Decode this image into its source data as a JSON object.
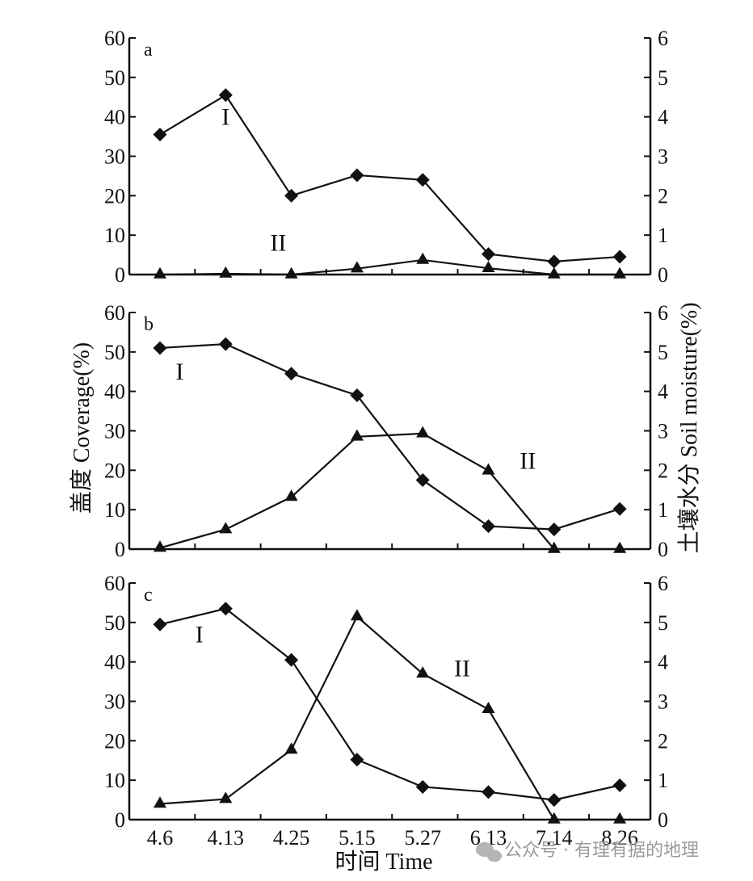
{
  "chart_data": {
    "type": "line",
    "x_categories": [
      "4.6",
      "4.13",
      "4.25",
      "5.15",
      "5.27",
      "6.13",
      "7.14",
      "8.26"
    ],
    "x_axis_title": "时间  Time",
    "y_left_title": "盖度  Coverage(%)",
    "y_right_title": "土壤水分  Soil moisture(%)",
    "y_left_ticks": [
      "0",
      "10",
      "20",
      "30",
      "40",
      "50",
      "60"
    ],
    "y_right_ticks": [
      "0",
      "1",
      "2",
      "3",
      "4",
      "5",
      "6"
    ],
    "y_left_range": [
      0,
      60
    ],
    "y_right_range": [
      0,
      6
    ],
    "panels": [
      {
        "label": "a",
        "series": [
          {
            "name": "I",
            "marker": "diamond",
            "values": [
              35.5,
              45.5,
              20,
              25.2,
              24,
              5.2,
              3.3,
              4.5
            ],
            "label_pos": [
              1,
              38
            ]
          },
          {
            "name": "II",
            "marker": "triangle",
            "values": [
              0,
              0.2,
              0,
              1.5,
              3.7,
              1.6,
              0,
              0
            ],
            "label_pos": [
              1.8,
              6
            ]
          }
        ]
      },
      {
        "label": "b",
        "series": [
          {
            "name": "I",
            "marker": "diamond",
            "values": [
              51,
              52,
              44.5,
              39,
              17.5,
              5.8,
              5,
              10.2
            ],
            "label_pos": [
              0.3,
              43
            ]
          },
          {
            "name": "II",
            "marker": "triangle",
            "values": [
              0.3,
              5,
              13.2,
              28.5,
              29.3,
              19.9,
              0,
              0
            ],
            "label_pos": [
              5.6,
              20.4
            ]
          }
        ]
      },
      {
        "label": "c",
        "series": [
          {
            "name": "I",
            "marker": "diamond",
            "values": [
              49.5,
              53.5,
              40.5,
              15.2,
              8.3,
              7,
              5,
              8.7
            ],
            "label_pos": [
              0.6,
              45
            ]
          },
          {
            "name": "II",
            "marker": "triangle",
            "values": [
              4,
              5.2,
              17.7,
              51.5,
              37,
              28,
              0,
              0
            ],
            "label_pos": [
              4.6,
              36.3
            ]
          }
        ]
      }
    ]
  },
  "watermark": "公众号 · 有理有据的地理"
}
